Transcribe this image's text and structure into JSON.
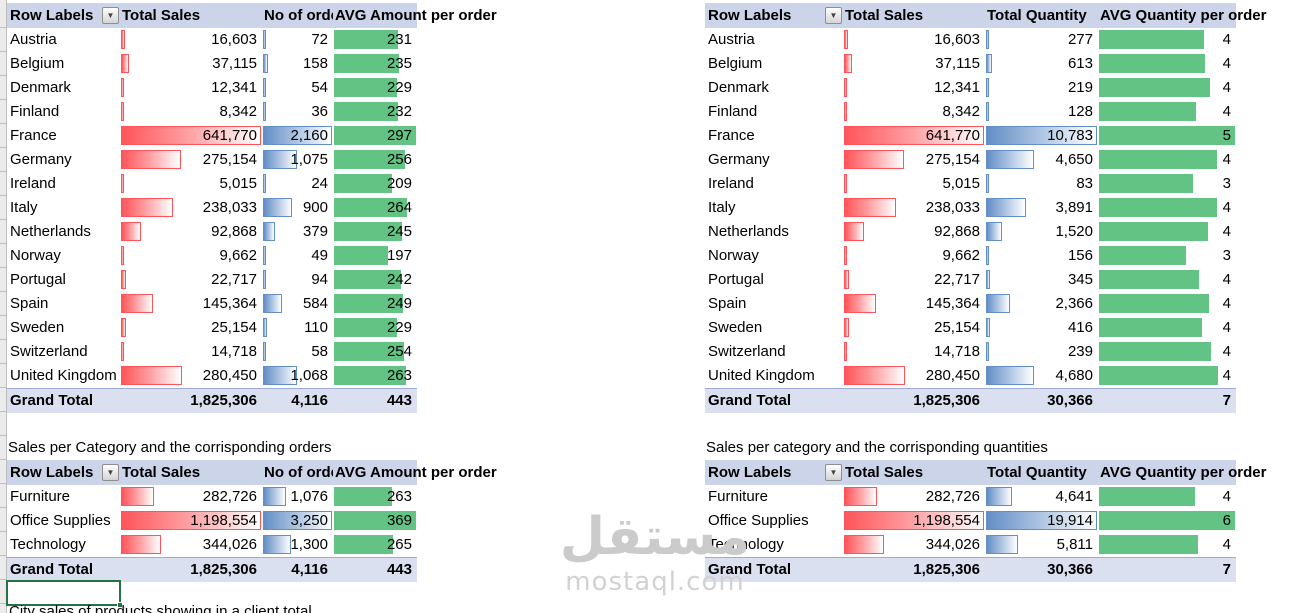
{
  "colors": {
    "header_bg": "#ccd4ea",
    "grand_total_bg": "#dbe0f1",
    "red_data_bar": "#ff555a",
    "blue_data_bar": "#638ec6",
    "green_data_bar": "#63c384",
    "selection_border": "#217346"
  },
  "icons": {
    "filter_dropdown": "▼"
  },
  "watermark": {
    "arabic": "مستقل",
    "latin": "mostaql.com"
  },
  "captions": {
    "category_orders": "Sales per Category and the corrisponding orders",
    "category_quantities": "Sales per category and the corrisponding quantities",
    "partial_bottom": "City sales of products showing in a client total"
  },
  "tables": [
    {
      "id": "country_orders",
      "headers": {
        "c1": "Row Labels",
        "c2": "Total Sales",
        "c3": "No of orders",
        "c4": "AVG Amount per order"
      },
      "rows": [
        {
          "label": "Austria",
          "c2": {
            "t": "16,603",
            "v": 16603
          },
          "c3": {
            "t": "72",
            "v": 72
          },
          "c4": {
            "t": "231",
            "v": 230.6
          }
        },
        {
          "label": "Belgium",
          "c2": {
            "t": "37,115",
            "v": 37115
          },
          "c3": {
            "t": "158",
            "v": 158
          },
          "c4": {
            "t": "235",
            "v": 234.9
          }
        },
        {
          "label": "Denmark",
          "c2": {
            "t": "12,341",
            "v": 12341
          },
          "c3": {
            "t": "54",
            "v": 54
          },
          "c4": {
            "t": "229",
            "v": 228.5
          }
        },
        {
          "label": "Finland",
          "c2": {
            "t": "8,342",
            "v": 8342
          },
          "c3": {
            "t": "36",
            "v": 36
          },
          "c4": {
            "t": "232",
            "v": 231.7
          }
        },
        {
          "label": "France",
          "c2": {
            "t": "641,770",
            "v": 641770
          },
          "c3": {
            "t": "2,160",
            "v": 2160
          },
          "c4": {
            "t": "297",
            "v": 297.1
          }
        },
        {
          "label": "Germany",
          "c2": {
            "t": "275,154",
            "v": 275154
          },
          "c3": {
            "t": "1,075",
            "v": 1075
          },
          "c4": {
            "t": "256",
            "v": 256.0
          }
        },
        {
          "label": "Ireland",
          "c2": {
            "t": "5,015",
            "v": 5015
          },
          "c3": {
            "t": "24",
            "v": 24
          },
          "c4": {
            "t": "209",
            "v": 209.0
          }
        },
        {
          "label": "Italy",
          "c2": {
            "t": "238,033",
            "v": 238033
          },
          "c3": {
            "t": "900",
            "v": 900
          },
          "c4": {
            "t": "264",
            "v": 264.5
          }
        },
        {
          "label": "Netherlands",
          "c2": {
            "t": "92,868",
            "v": 92868
          },
          "c3": {
            "t": "379",
            "v": 379
          },
          "c4": {
            "t": "245",
            "v": 245.0
          }
        },
        {
          "label": "Norway",
          "c2": {
            "t": "9,662",
            "v": 9662
          },
          "c3": {
            "t": "49",
            "v": 49
          },
          "c4": {
            "t": "197",
            "v": 197.2
          }
        },
        {
          "label": "Portugal",
          "c2": {
            "t": "22,717",
            "v": 22717
          },
          "c3": {
            "t": "94",
            "v": 94
          },
          "c4": {
            "t": "242",
            "v": 241.7
          }
        },
        {
          "label": "Spain",
          "c2": {
            "t": "145,364",
            "v": 145364
          },
          "c3": {
            "t": "584",
            "v": 584
          },
          "c4": {
            "t": "249",
            "v": 248.9
          }
        },
        {
          "label": "Sweden",
          "c2": {
            "t": "25,154",
            "v": 25154
          },
          "c3": {
            "t": "110",
            "v": 110
          },
          "c4": {
            "t": "229",
            "v": 228.7
          }
        },
        {
          "label": "Switzerland",
          "c2": {
            "t": "14,718",
            "v": 14718
          },
          "c3": {
            "t": "58",
            "v": 58
          },
          "c4": {
            "t": "254",
            "v": 253.8
          }
        },
        {
          "label": "United Kingdom",
          "c2": {
            "t": "280,450",
            "v": 280450
          },
          "c3": {
            "t": "1,068",
            "v": 1068
          },
          "c4": {
            "t": "263",
            "v": 262.6
          }
        }
      ],
      "grand_total": {
        "label": "Grand Total",
        "c2": "1,825,306",
        "c3": "4,116",
        "c4": "443"
      }
    },
    {
      "id": "country_quantities",
      "headers": {
        "c1": "Row Labels",
        "c2": "Total Sales",
        "c3": "Total Quantity",
        "c4": "AVG Quantity per order"
      },
      "rows": [
        {
          "label": "Austria",
          "c2": {
            "t": "16,603",
            "v": 16603
          },
          "c3": {
            "t": "277",
            "v": 277
          },
          "c4": {
            "t": "4",
            "v": 3.85
          }
        },
        {
          "label": "Belgium",
          "c2": {
            "t": "37,115",
            "v": 37115
          },
          "c3": {
            "t": "613",
            "v": 613
          },
          "c4": {
            "t": "4",
            "v": 3.88
          }
        },
        {
          "label": "Denmark",
          "c2": {
            "t": "12,341",
            "v": 12341
          },
          "c3": {
            "t": "219",
            "v": 219
          },
          "c4": {
            "t": "4",
            "v": 4.06
          }
        },
        {
          "label": "Finland",
          "c2": {
            "t": "8,342",
            "v": 8342
          },
          "c3": {
            "t": "128",
            "v": 128
          },
          "c4": {
            "t": "4",
            "v": 3.56
          }
        },
        {
          "label": "France",
          "c2": {
            "t": "641,770",
            "v": 641770
          },
          "c3": {
            "t": "10,783",
            "v": 10783
          },
          "c4": {
            "t": "5",
            "v": 4.99
          }
        },
        {
          "label": "Germany",
          "c2": {
            "t": "275,154",
            "v": 275154
          },
          "c3": {
            "t": "4,650",
            "v": 4650
          },
          "c4": {
            "t": "4",
            "v": 4.33
          }
        },
        {
          "label": "Ireland",
          "c2": {
            "t": "5,015",
            "v": 5015
          },
          "c3": {
            "t": "83",
            "v": 83
          },
          "c4": {
            "t": "3",
            "v": 3.46
          }
        },
        {
          "label": "Italy",
          "c2": {
            "t": "238,033",
            "v": 238033
          },
          "c3": {
            "t": "3,891",
            "v": 3891
          },
          "c4": {
            "t": "4",
            "v": 4.32
          }
        },
        {
          "label": "Netherlands",
          "c2": {
            "t": "92,868",
            "v": 92868
          },
          "c3": {
            "t": "1,520",
            "v": 1520
          },
          "c4": {
            "t": "4",
            "v": 4.01
          }
        },
        {
          "label": "Norway",
          "c2": {
            "t": "9,662",
            "v": 9662
          },
          "c3": {
            "t": "156",
            "v": 156
          },
          "c4": {
            "t": "3",
            "v": 3.18
          }
        },
        {
          "label": "Portugal",
          "c2": {
            "t": "22,717",
            "v": 22717
          },
          "c3": {
            "t": "345",
            "v": 345
          },
          "c4": {
            "t": "4",
            "v": 3.67
          }
        },
        {
          "label": "Spain",
          "c2": {
            "t": "145,364",
            "v": 145364
          },
          "c3": {
            "t": "2,366",
            "v": 2366
          },
          "c4": {
            "t": "4",
            "v": 4.05
          }
        },
        {
          "label": "Sweden",
          "c2": {
            "t": "25,154",
            "v": 25154
          },
          "c3": {
            "t": "416",
            "v": 416
          },
          "c4": {
            "t": "4",
            "v": 3.78
          }
        },
        {
          "label": "Switzerland",
          "c2": {
            "t": "14,718",
            "v": 14718
          },
          "c3": {
            "t": "239",
            "v": 239
          },
          "c4": {
            "t": "4",
            "v": 4.12
          }
        },
        {
          "label": "United Kingdom",
          "c2": {
            "t": "280,450",
            "v": 280450
          },
          "c3": {
            "t": "4,680",
            "v": 4680
          },
          "c4": {
            "t": "4",
            "v": 4.38
          }
        }
      ],
      "grand_total": {
        "label": "Grand Total",
        "c2": "1,825,306",
        "c3": "30,366",
        "c4": "7"
      }
    },
    {
      "id": "category_orders",
      "headers": {
        "c1": "Row Labels",
        "c2": "Total Sales",
        "c3": "No of orders",
        "c4": "AVG Amount per order"
      },
      "rows": [
        {
          "label": "Furniture",
          "c2": {
            "t": "282,726",
            "v": 282726
          },
          "c3": {
            "t": "1,076",
            "v": 1076
          },
          "c4": {
            "t": "263",
            "v": 262.8
          }
        },
        {
          "label": "Office Supplies",
          "c2": {
            "t": "1,198,554",
            "v": 1198554
          },
          "c3": {
            "t": "3,250",
            "v": 3250
          },
          "c4": {
            "t": "369",
            "v": 368.8
          }
        },
        {
          "label": "Technology",
          "c2": {
            "t": "344,026",
            "v": 344026
          },
          "c3": {
            "t": "1,300",
            "v": 1300
          },
          "c4": {
            "t": "265",
            "v": 264.6
          }
        }
      ],
      "grand_total": {
        "label": "Grand Total",
        "c2": "1,825,306",
        "c3": "4,116",
        "c4": "443"
      }
    },
    {
      "id": "category_quantities",
      "headers": {
        "c1": "Row Labels",
        "c2": "Total Sales",
        "c3": "Total Quantity",
        "c4": "AVG Quantity per order"
      },
      "rows": [
        {
          "label": "Furniture",
          "c2": {
            "t": "282,726",
            "v": 282726
          },
          "c3": {
            "t": "4,641",
            "v": 4641
          },
          "c4": {
            "t": "4",
            "v": 4.31
          }
        },
        {
          "label": "Office Supplies",
          "c2": {
            "t": "1,198,554",
            "v": 1198554
          },
          "c3": {
            "t": "19,914",
            "v": 19914
          },
          "c4": {
            "t": "6",
            "v": 6.13
          }
        },
        {
          "label": "Technology",
          "c2": {
            "t": "344,026",
            "v": 344026
          },
          "c3": {
            "t": "5,811",
            "v": 5811
          },
          "c4": {
            "t": "4",
            "v": 4.47
          }
        }
      ],
      "grand_total": {
        "label": "Grand Total",
        "c2": "1,825,306",
        "c3": "30,366",
        "c4": "7"
      }
    }
  ]
}
